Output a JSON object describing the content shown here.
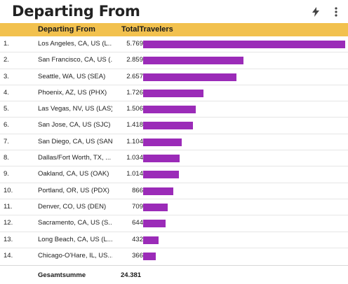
{
  "header": {
    "title": "Departing From",
    "icons": [
      "bolt-icon",
      "more-vertical-icon"
    ]
  },
  "table": {
    "columns": [
      "Departing From",
      "TotalTravelers"
    ],
    "rows": [
      {
        "index": "1.",
        "name": "Los Angeles, CA, US (L...",
        "value_label": "5.769",
        "value": 5769
      },
      {
        "index": "2.",
        "name": "San Francisco, CA, US (...",
        "value_label": "2.859",
        "value": 2859
      },
      {
        "index": "3.",
        "name": "Seattle, WA, US (SEA)",
        "value_label": "2.657",
        "value": 2657
      },
      {
        "index": "4.",
        "name": "Phoenix, AZ, US (PHX)",
        "value_label": "1.726",
        "value": 1726
      },
      {
        "index": "5.",
        "name": "Las Vegas, NV, US (LAS)",
        "value_label": "1.506",
        "value": 1506
      },
      {
        "index": "6.",
        "name": "San Jose, CA, US (SJC)",
        "value_label": "1.418",
        "value": 1418
      },
      {
        "index": "7.",
        "name": "San Diego, CA, US (SAN)",
        "value_label": "1.104",
        "value": 1104
      },
      {
        "index": "8.",
        "name": "Dallas/Fort Worth, TX, ...",
        "value_label": "1.034",
        "value": 1034
      },
      {
        "index": "9.",
        "name": "Oakland, CA, US (OAK)",
        "value_label": "1.014",
        "value": 1014
      },
      {
        "index": "10.",
        "name": "Portland, OR, US (PDX)",
        "value_label": "866",
        "value": 866
      },
      {
        "index": "11.",
        "name": "Denver, CO, US (DEN)",
        "value_label": "709",
        "value": 709
      },
      {
        "index": "12.",
        "name": "Sacramento, CA, US (S...",
        "value_label": "644",
        "value": 644
      },
      {
        "index": "13.",
        "name": "Long Beach, CA, US (L...",
        "value_label": "432",
        "value": 432
      },
      {
        "index": "14.",
        "name": "Chicago-O'Hare, IL, US...",
        "value_label": "366",
        "value": 366
      }
    ],
    "total_label": "Gesamtsumme",
    "total_value": "24.381"
  },
  "colors": {
    "header_bar": "#f2c14e",
    "bar": "#9b2bb8"
  }
}
